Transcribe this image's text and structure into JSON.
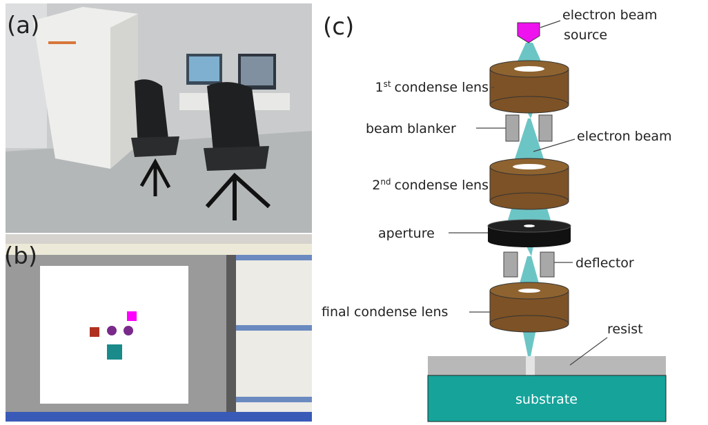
{
  "panels": {
    "a": "(a)",
    "b": "(b)",
    "c": "(c)"
  },
  "labels": {
    "source_line1": "electron beam",
    "source_line2": "source",
    "lens1": {
      "number": "1",
      "ordinal": "st",
      "text": "condense lens"
    },
    "blanker": "beam blanker",
    "beam": "electron beam",
    "lens2": {
      "number": "2",
      "ordinal": "nd",
      "text": "condense lens"
    },
    "aperture": "aperture",
    "deflector": "deflector",
    "final_lens": "final condense lens",
    "resist": "resist",
    "substrate": "substrate"
  }
}
